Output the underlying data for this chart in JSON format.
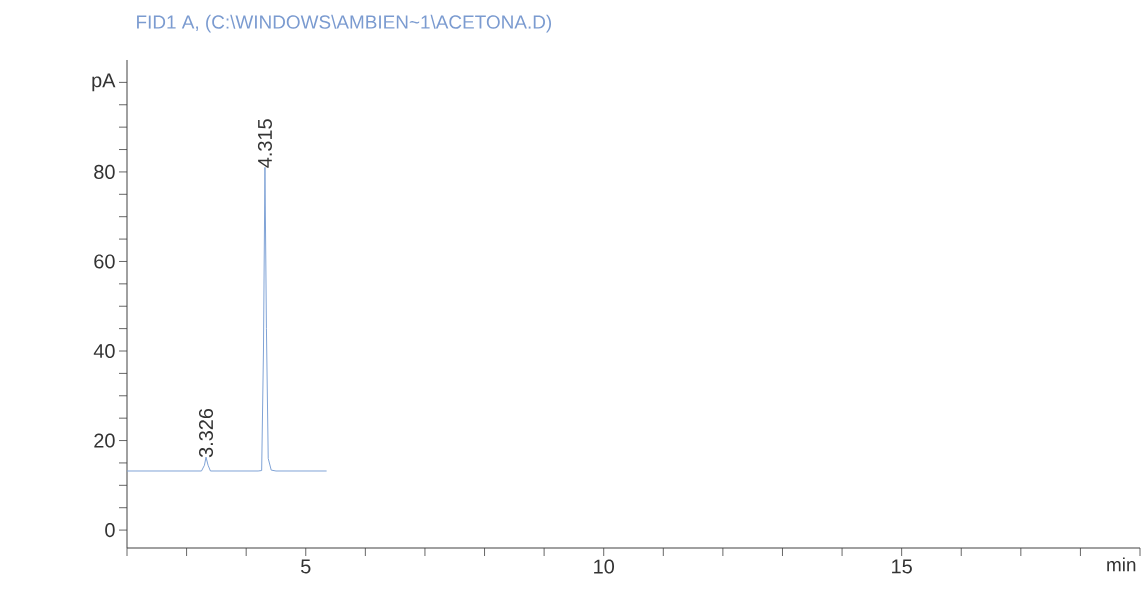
{
  "chart_data": {
    "type": "line",
    "title": "FID1 A,  (C:\\WINDOWS\\AMBIEN~1\\ACETONA.D)",
    "xlabel": "min",
    "series": [
      {
        "color": "#7fa3d6",
        "x": [
          2,
          3.0,
          3.25,
          3.3,
          3.326,
          3.36,
          3.4,
          3.5,
          4.2,
          4.26,
          4.29,
          4.315,
          4.34,
          4.37,
          4.42,
          4.5,
          5.35
        ],
        "values": [
          13.2,
          13.2,
          13.2,
          14.5,
          16.3,
          14.5,
          13.2,
          13.2,
          13.2,
          13.3,
          40,
          81,
          45,
          16,
          13.4,
          13.2,
          13.2
        ]
      }
    ],
    "xlim": [
      2,
      19
    ],
    "ylim": [
      -4,
      105
    ],
    "xticks": [
      {
        "value": 2,
        "label": null
      },
      {
        "value": 3,
        "label": null
      },
      {
        "value": 4,
        "label": null
      },
      5,
      {
        "value": 6,
        "label": null
      },
      {
        "value": 7,
        "label": null
      },
      {
        "value": 8,
        "label": null
      },
      {
        "value": 9,
        "label": null
      },
      10,
      {
        "value": 11,
        "label": null
      },
      {
        "value": 12,
        "label": null
      },
      {
        "value": 13,
        "label": null
      },
      {
        "value": 14,
        "label": null
      },
      15,
      {
        "value": 16,
        "label": null
      },
      {
        "value": 17,
        "label": null
      },
      {
        "value": 18,
        "label": null
      },
      {
        "value": 19,
        "label": null
      }
    ],
    "yticks": [
      0,
      {
        "value": 5,
        "label": null
      },
      {
        "value": 10,
        "label": null
      },
      {
        "value": 15,
        "label": null
      },
      20,
      {
        "value": 25,
        "label": null
      },
      {
        "value": 30,
        "label": null
      },
      {
        "value": 35,
        "label": null
      },
      40,
      {
        "value": 45,
        "label": null
      },
      {
        "value": 50,
        "label": null
      },
      {
        "value": 55,
        "label": null
      },
      60,
      {
        "value": 65,
        "label": null
      },
      {
        "value": 70,
        "label": null
      },
      {
        "value": 75,
        "label": null
      },
      80,
      {
        "value": 85,
        "label": null
      },
      {
        "value": 90,
        "label": null
      },
      {
        "value": 95,
        "label": null
      },
      {
        "value": 100,
        "label": "pA"
      }
    ],
    "annotations": [
      {
        "text": "3.326",
        "x": 3.326,
        "y": 16.3
      },
      {
        "text": "4.315",
        "x": 4.315,
        "y": 81
      }
    ]
  }
}
